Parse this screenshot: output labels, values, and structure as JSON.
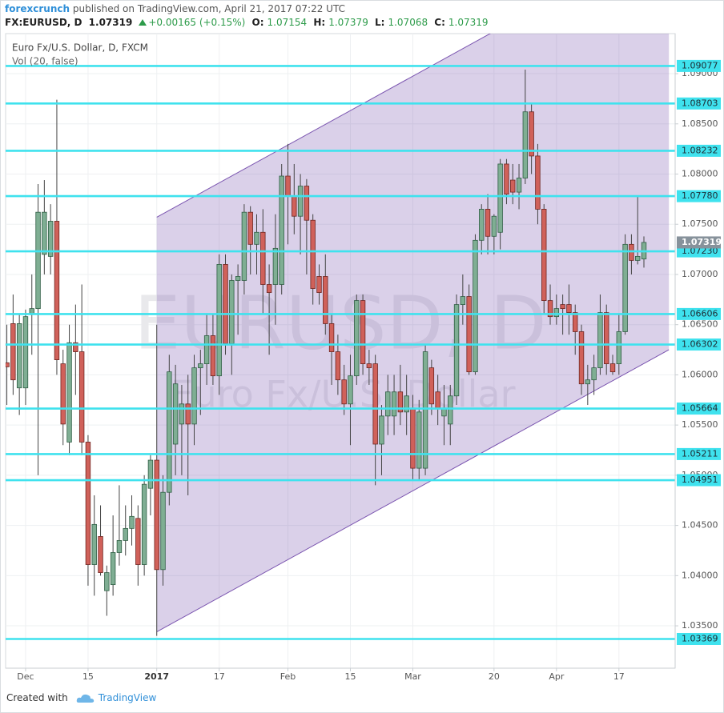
{
  "header": {
    "author": "forexcrunch",
    "published": "published on TradingView.com, April 21, 2017 07:22 UTC",
    "symbol": "FX:EURUSD, D",
    "last": "1.07319",
    "change": "+0.00165 (+0.15%)",
    "ohlc": [
      {
        "label": "O:",
        "value": "1.07154"
      },
      {
        "label": "H:",
        "value": "1.07379"
      },
      {
        "label": "L:",
        "value": "1.07068"
      },
      {
        "label": "C:",
        "value": "1.07319"
      }
    ]
  },
  "chart_data": {
    "type": "candlestick",
    "title": "Euro Fx/U.S. Dollar, D, FXCM",
    "subtitle": "Vol (20, false)",
    "watermark": [
      "EURUSD, D",
      "Euro Fx/U.S. Dollar"
    ],
    "x": [
      0,
      1,
      2,
      3,
      4,
      5,
      6,
      7,
      8,
      9,
      10,
      11,
      12,
      13,
      14,
      15,
      16,
      17,
      18,
      19,
      20,
      21,
      22,
      23,
      24,
      25,
      26,
      27,
      28,
      29,
      30,
      31,
      32,
      33,
      34,
      35,
      36,
      37,
      38,
      39,
      40,
      41,
      42,
      43,
      44,
      45,
      46,
      47,
      48,
      49,
      50,
      51,
      52,
      53,
      54,
      55,
      56,
      57,
      58,
      59,
      60,
      61,
      62,
      63,
      64,
      65,
      66,
      67,
      68,
      69,
      70,
      71,
      72,
      73,
      74,
      75,
      76,
      77,
      78,
      79,
      80,
      81,
      82,
      83,
      84,
      85,
      86,
      87,
      88,
      89,
      90,
      91,
      92,
      93,
      94,
      95,
      96,
      97,
      98,
      99,
      100,
      101,
      102
    ],
    "open": [
      1.0612,
      1.0651,
      1.0587,
      1.0587,
      1.066,
      1.0666,
      1.072,
      1.0718,
      1.0753,
      1.0611,
      1.0533,
      1.0632,
      1.0623,
      1.0533,
      1.0411,
      1.0439,
      1.0385,
      1.0391,
      1.0423,
      1.0435,
      1.0447,
      1.0457,
      1.0411,
      1.0487,
      1.0515,
      1.0406,
      1.0483,
      1.0531,
      1.0551,
      1.0571,
      1.0551,
      1.0607,
      1.0611,
      1.0639,
      1.0599,
      1.071,
      1.0631,
      1.0694,
      1.0694,
      1.0762,
      1.073,
      1.0742,
      1.069,
      1.069,
      1.069,
      1.0798,
      1.0778,
      1.0758,
      1.0788,
      1.0754,
      1.0698,
      1.0698,
      1.0651,
      1.0623,
      1.0595,
      1.0571,
      1.0599,
      1.0674,
      1.0611,
      1.0611,
      1.0531,
      1.0559,
      1.0559,
      1.0583,
      1.0563,
      1.0567,
      1.0507,
      1.0507,
      1.0607,
      1.0583,
      1.0559,
      1.0551,
      1.0579,
      1.067,
      1.0678,
      1.0603,
      1.0734,
      1.0765,
      1.0738,
      1.0742,
      1.081,
      1.0794,
      1.0782,
      1.0796,
      1.0862,
      1.0818,
      1.0765,
      1.0674,
      1.0658,
      1.067,
      1.067,
      1.0662,
      1.0643,
      1.0591,
      1.0595,
      1.0607,
      1.0662,
      1.0611,
      1.0611,
      1.0643,
      1.073,
      1.0714,
      1.07154
    ],
    "high": [
      1.065,
      1.068,
      1.066,
      1.0665,
      1.07,
      1.079,
      1.0794,
      1.077,
      1.0874,
      1.0625,
      1.065,
      1.067,
      1.069,
      1.054,
      1.048,
      1.047,
      1.041,
      1.046,
      1.049,
      1.047,
      1.048,
      1.047,
      1.05,
      1.052,
      1.065,
      1.05,
      1.062,
      1.061,
      1.059,
      1.06,
      1.062,
      1.0625,
      1.066,
      1.066,
      1.072,
      1.072,
      1.07,
      1.071,
      1.077,
      1.0768,
      1.076,
      1.0765,
      1.071,
      1.076,
      1.081,
      1.083,
      1.081,
      1.08,
      1.0795,
      1.076,
      1.071,
      1.072,
      1.066,
      1.064,
      1.061,
      1.062,
      1.068,
      1.068,
      1.0625,
      1.062,
      1.057,
      1.06,
      1.06,
      1.061,
      1.06,
      1.058,
      1.0575,
      1.063,
      1.0615,
      1.06,
      1.059,
      1.059,
      1.068,
      1.07,
      1.069,
      1.074,
      1.077,
      1.078,
      1.076,
      1.0815,
      1.0815,
      1.081,
      1.081,
      1.0904,
      1.087,
      1.083,
      1.077,
      1.069,
      1.068,
      1.068,
      1.069,
      1.067,
      1.065,
      1.061,
      1.062,
      1.068,
      1.067,
      1.062,
      1.066,
      1.074,
      1.074,
      1.0778,
      1.07379
    ],
    "low": [
      1.057,
      1.058,
      1.056,
      1.057,
      1.062,
      1.05,
      1.07,
      1.07,
      1.06,
      1.053,
      1.052,
      1.058,
      1.052,
      1.039,
      1.038,
      1.04,
      1.036,
      1.038,
      1.041,
      1.042,
      1.043,
      1.039,
      1.04,
      1.046,
      1.034,
      1.039,
      1.047,
      1.05,
      1.05,
      1.048,
      1.053,
      1.056,
      1.059,
      1.059,
      1.058,
      1.062,
      1.06,
      1.064,
      1.068,
      1.07,
      1.07,
      1.066,
      1.062,
      1.065,
      1.068,
      1.073,
      1.074,
      1.072,
      1.07,
      1.067,
      1.067,
      1.064,
      1.059,
      1.058,
      1.056,
      1.053,
      1.059,
      1.06,
      1.059,
      1.049,
      1.05,
      1.054,
      1.054,
      1.055,
      1.054,
      1.0495,
      1.0495,
      1.05,
      1.056,
      1.055,
      1.053,
      1.053,
      1.057,
      1.065,
      1.06,
      1.06,
      1.072,
      1.072,
      1.072,
      1.0725,
      1.077,
      1.077,
      1.0765,
      1.079,
      1.08,
      1.075,
      1.066,
      1.065,
      1.065,
      1.064,
      1.064,
      1.062,
      1.058,
      1.057,
      1.058,
      1.06,
      1.06,
      1.06,
      1.06,
      1.064,
      1.07,
      1.071,
      1.07068
    ],
    "close": [
      1.0608,
      1.0595,
      1.0651,
      1.0658,
      1.0666,
      1.0762,
      1.0762,
      1.0753,
      1.0615,
      1.0551,
      1.0632,
      1.0623,
      1.0533,
      1.0411,
      1.0451,
      1.0403,
      1.0403,
      1.0423,
      1.0435,
      1.0447,
      1.0459,
      1.0411,
      1.0491,
      1.0515,
      1.0406,
      1.0483,
      1.0603,
      1.0591,
      1.0571,
      1.0551,
      1.0607,
      1.0611,
      1.0639,
      1.0599,
      1.071,
      1.0631,
      1.0694,
      1.0698,
      1.0762,
      1.073,
      1.0742,
      1.069,
      1.0682,
      1.0726,
      1.0798,
      1.0778,
      1.0758,
      1.0788,
      1.0754,
      1.0686,
      1.0682,
      1.0651,
      1.0623,
      1.0595,
      1.0571,
      1.0599,
      1.0674,
      1.0611,
      1.0607,
      1.0531,
      1.0559,
      1.0583,
      1.0583,
      1.0563,
      1.0579,
      1.0507,
      1.0563,
      1.0623,
      1.0571,
      1.0567,
      1.0567,
      1.0579,
      1.067,
      1.0678,
      1.0603,
      1.0734,
      1.0765,
      1.0738,
      1.0758,
      1.081,
      1.078,
      1.0782,
      1.0796,
      1.0862,
      1.0818,
      1.0765,
      1.0674,
      1.0658,
      1.0666,
      1.0666,
      1.0662,
      1.0643,
      1.0591,
      1.0595,
      1.0607,
      1.0662,
      1.0611,
      1.0603,
      1.0643,
      1.073,
      1.0714,
      1.0718,
      1.07319
    ],
    "up_color": "#7fae93",
    "down_color": "#d0615a",
    "xlim": [
      -0.2,
      107
    ],
    "xticks": [
      {
        "value": 3,
        "label": "Dec"
      },
      {
        "value": 13,
        "label": "15"
      },
      {
        "value": 24,
        "label": "2017"
      },
      {
        "value": 34,
        "label": "17"
      },
      {
        "value": 45,
        "label": "Feb"
      },
      {
        "value": 55,
        "label": "15"
      },
      {
        "value": 65,
        "label": "Mar"
      },
      {
        "value": 78,
        "label": "20"
      },
      {
        "value": 88,
        "label": "Apr"
      },
      {
        "value": 98,
        "label": "17"
      }
    ],
    "ylim": [
      1.03078,
      1.09399
    ],
    "yticks": [
      {
        "value": 1.09,
        "label": "1.09000"
      },
      {
        "value": 1.085,
        "label": "1.08500"
      },
      {
        "value": 1.08,
        "label": "1.08000"
      },
      {
        "value": 1.075,
        "label": "1.07500"
      },
      {
        "value": 1.07,
        "label": "1.07000"
      },
      {
        "value": 1.065,
        "label": "1.06500"
      },
      {
        "value": 1.06,
        "label": "1.06000"
      },
      {
        "value": 1.055,
        "label": "1.05500"
      },
      {
        "value": 1.05,
        "label": "1.05000"
      },
      {
        "value": 1.045,
        "label": "1.04500"
      },
      {
        "value": 1.04,
        "label": "1.04000"
      },
      {
        "value": 1.035,
        "label": "1.03500"
      }
    ],
    "grid": true,
    "levels": [
      1.09077,
      1.08703,
      1.08232,
      1.0778,
      1.0723,
      1.06606,
      1.06302,
      1.05664,
      1.05211,
      1.04951,
      1.03369
    ],
    "level_labels": [
      "1.09077",
      "1.08703",
      "1.08232",
      "1.07780",
      "1.07230",
      "1.06606",
      "1.06302",
      "1.05664",
      "1.05211",
      "1.04951",
      "1.03369"
    ],
    "level_color": "#3fe2ee",
    "last_price": 1.07319,
    "last_price_color": "#87929b",
    "channel": {
      "x": [
        24,
        106
      ],
      "upper": [
        1.0757,
        1.1038
      ],
      "lower": [
        1.0344,
        1.0625
      ],
      "color": "#7b55b0"
    }
  },
  "footer": {
    "text": "Created with",
    "brand": "TradingView"
  }
}
